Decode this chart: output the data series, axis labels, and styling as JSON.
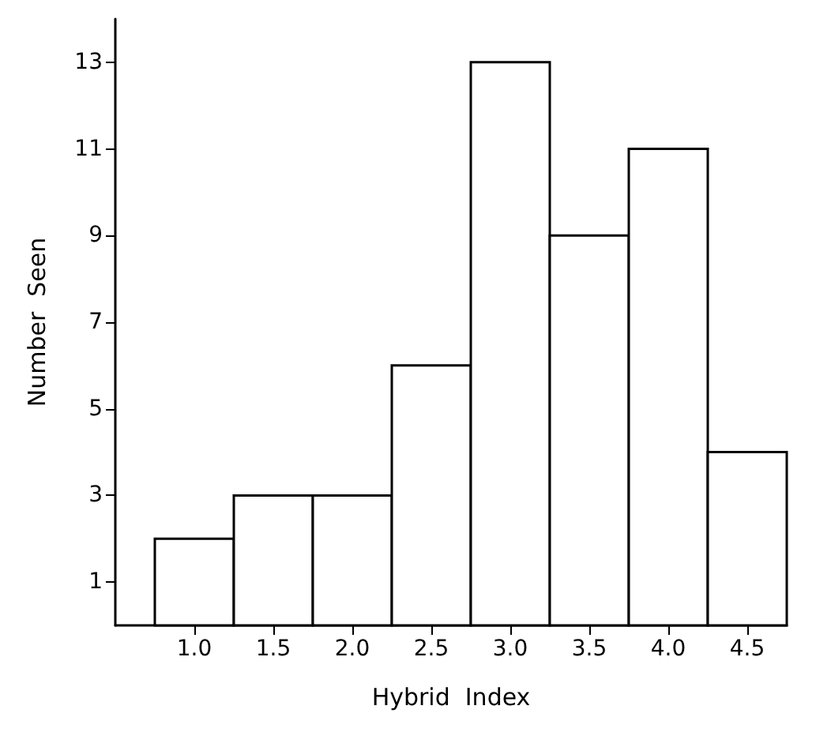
{
  "chart_data": {
    "type": "histogram",
    "xlabel": "Hybrid  Index",
    "ylabel": "Number  Seen",
    "bins": [
      0.75,
      1.25,
      1.75,
      2.25,
      2.75,
      3.25,
      3.75,
      4.25,
      4.75
    ],
    "values": [
      2,
      3,
      3,
      6,
      13,
      9,
      11,
      4
    ],
    "color": "#ffffff",
    "xlim": [
      0.5,
      4.75
    ],
    "xticks": [
      {
        "value": 1,
        "label": "1.0"
      },
      {
        "value": 1.5,
        "label": "1.5"
      },
      {
        "value": 2,
        "label": "2.0"
      },
      {
        "value": 2.5,
        "label": "2.5"
      },
      {
        "value": 3,
        "label": "3.0"
      },
      {
        "value": 3.5,
        "label": "3.5"
      },
      {
        "value": 4,
        "label": "4.0"
      },
      {
        "value": 4.5,
        "label": "4.5"
      }
    ],
    "ylim": [
      0,
      14
    ],
    "yticks": [
      1,
      3,
      5,
      7,
      9,
      11,
      13
    ],
    "grid": false
  }
}
